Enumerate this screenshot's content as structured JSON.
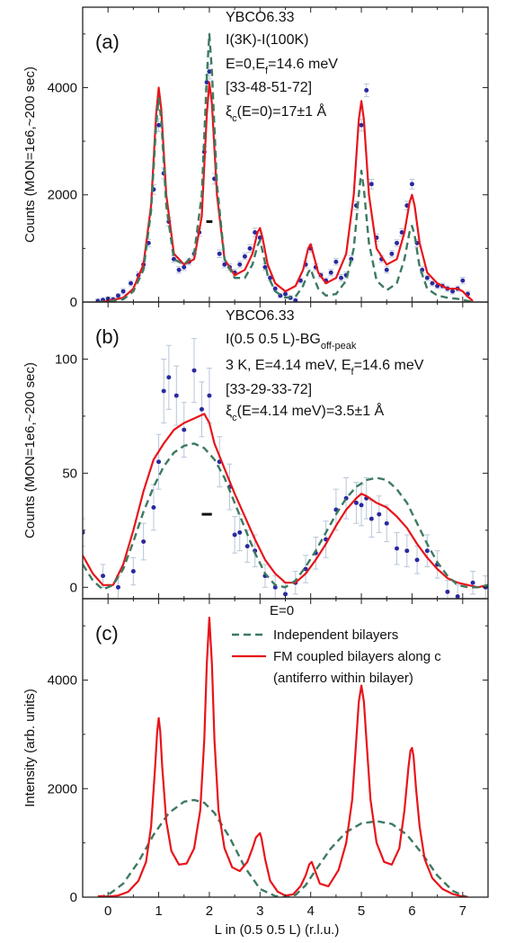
{
  "figure": {
    "xlabel": "L in (0.5 0.5 L) (r.l.u.)"
  },
  "colors": {
    "model_fm": "#e8141a",
    "model_independent": "#3d7a60",
    "data_marker": "#2a2aa0",
    "errorbar": "#b8c6d8"
  },
  "chart_data": [
    {
      "panel": "a",
      "type": "scatter",
      "panel_label": "(a)",
      "ylabel": "Counts (MON=1e6,~200 sec)",
      "xlim": [
        -0.5,
        7.5
      ],
      "ylim": [
        0,
        5500
      ],
      "yticks": [
        0,
        2000,
        4000
      ],
      "annotation": {
        "line1": "YBCO6.33",
        "line2": "I(3K)-I(100K)",
        "line3_main": "E=0,E",
        "line3_sub": "f",
        "line3_rest": "=14.6 meV",
        "line4": "[33-48-51-72]",
        "line5_sym": "ξ",
        "line5_sub": "c",
        "line5_rest": "(E=0)=17±1 Å"
      },
      "resolution_bar": {
        "x_center": 2.0,
        "width": 0.12,
        "y": 1500
      },
      "series": [
        {
          "name": "data",
          "style": "markers",
          "x": [
            -0.2,
            -0.1,
            0.0,
            0.1,
            0.2,
            0.3,
            0.45,
            0.6,
            0.7,
            0.8,
            0.9,
            1.0,
            1.1,
            1.2,
            1.3,
            1.4,
            1.5,
            1.6,
            1.7,
            1.8,
            1.9,
            1.95,
            2.0,
            2.1,
            2.2,
            2.3,
            2.4,
            2.5,
            2.6,
            2.7,
            2.8,
            2.9,
            3.0,
            3.1,
            3.2,
            3.3,
            3.4,
            3.5,
            3.6,
            3.7,
            3.8,
            3.9,
            4.0,
            4.1,
            4.2,
            4.3,
            4.4,
            4.5,
            4.6,
            4.7,
            4.8,
            4.9,
            5.0,
            5.1,
            5.2,
            5.3,
            5.4,
            5.5,
            5.6,
            5.7,
            5.8,
            5.9,
            6.0,
            6.1,
            6.2,
            6.3,
            6.4,
            6.5,
            6.6,
            6.7,
            6.8,
            6.9,
            7.0,
            7.1
          ],
          "y": [
            20,
            40,
            60,
            50,
            120,
            200,
            350,
            500,
            700,
            1100,
            2100,
            3300,
            2400,
            1500,
            800,
            600,
            650,
            750,
            900,
            1300,
            2800,
            4100,
            4300,
            2300,
            900,
            700,
            650,
            550,
            700,
            850,
            1000,
            1300,
            1200,
            650,
            450,
            250,
            120,
            150,
            80,
            30,
            400,
            700,
            1000,
            650,
            500,
            400,
            550,
            750,
            450,
            500,
            800,
            1800,
            3300,
            3950,
            2200,
            1200,
            800,
            600,
            900,
            1100,
            1300,
            1800,
            2200,
            1100,
            600,
            450,
            350,
            300,
            300,
            250,
            200,
            250,
            400,
            150
          ],
          "err": [
            40,
            40,
            40,
            40,
            40,
            50,
            50,
            60,
            60,
            70,
            90,
            120,
            100,
            80,
            60,
            60,
            60,
            60,
            60,
            70,
            100,
            130,
            140,
            100,
            70,
            60,
            60,
            60,
            60,
            60,
            70,
            80,
            90,
            60,
            50,
            40,
            40,
            40,
            40,
            40,
            50,
            60,
            70,
            60,
            50,
            50,
            60,
            60,
            60,
            60,
            60,
            80,
            110,
            120,
            90,
            70,
            60,
            60,
            60,
            60,
            70,
            80,
            90,
            70,
            60,
            50,
            50,
            50,
            50,
            50,
            50,
            50,
            60,
            50
          ]
        },
        {
          "name": "",
          "style": "line-solid",
          "color_key": "model_fm",
          "x": [
            -0.2,
            0.0,
            0.3,
            0.5,
            0.7,
            0.85,
            0.95,
            1.0,
            1.05,
            1.15,
            1.3,
            1.5,
            1.7,
            1.85,
            1.95,
            2.0,
            2.05,
            2.15,
            2.3,
            2.5,
            2.7,
            2.85,
            2.95,
            3.0,
            3.05,
            3.15,
            3.3,
            3.5,
            3.7,
            3.85,
            3.95,
            4.0,
            4.05,
            4.15,
            4.3,
            4.5,
            4.7,
            4.85,
            4.95,
            5.0,
            5.05,
            5.15,
            5.3,
            5.5,
            5.7,
            5.85,
            5.95,
            6.0,
            6.05,
            6.15,
            6.3,
            6.5,
            6.7,
            6.9,
            7.0,
            7.1,
            7.2
          ],
          "y": [
            0,
            20,
            80,
            250,
            700,
            1800,
            3500,
            4000,
            3600,
            2000,
            900,
            700,
            800,
            1600,
            3500,
            4100,
            3700,
            2000,
            800,
            500,
            600,
            900,
            1300,
            1380,
            1200,
            700,
            350,
            200,
            300,
            600,
            1000,
            1080,
            900,
            550,
            350,
            450,
            900,
            2000,
            3400,
            3750,
            3400,
            2000,
            1000,
            700,
            800,
            1300,
            1850,
            2000,
            1800,
            1100,
            550,
            350,
            250,
            250,
            200,
            100,
            20
          ]
        },
        {
          "name": "",
          "style": "line-dashed",
          "color_key": "model_independent",
          "x": [
            -0.2,
            0.0,
            0.3,
            0.5,
            0.7,
            0.85,
            0.95,
            1.0,
            1.05,
            1.15,
            1.3,
            1.5,
            1.7,
            1.85,
            1.95,
            2.0,
            2.05,
            2.15,
            2.3,
            2.5,
            2.7,
            2.85,
            2.95,
            3.0,
            3.05,
            3.15,
            3.3,
            3.5,
            3.7,
            3.85,
            3.95,
            4.0,
            4.05,
            4.15,
            4.3,
            4.5,
            4.7,
            4.85,
            4.95,
            5.0,
            5.05,
            5.15,
            5.3,
            5.5,
            5.7,
            5.85,
            5.95,
            6.0,
            6.05,
            6.15,
            6.3,
            6.5,
            6.7,
            6.9,
            7.0,
            7.1,
            7.2
          ],
          "y": [
            0,
            10,
            50,
            200,
            600,
            1700,
            3300,
            3800,
            3400,
            1800,
            800,
            700,
            900,
            2000,
            4200,
            5000,
            4300,
            2200,
            800,
            450,
            450,
            700,
            1050,
            1150,
            950,
            500,
            200,
            80,
            100,
            300,
            550,
            620,
            480,
            250,
            120,
            150,
            400,
            1000,
            2000,
            2450,
            2100,
            1100,
            400,
            220,
            350,
            800,
            1300,
            1420,
            1250,
            650,
            250,
            120,
            80,
            60,
            40,
            20,
            0
          ]
        }
      ]
    },
    {
      "panel": "b",
      "type": "scatter",
      "panel_label": "(b)",
      "ylabel": "Counts (MON=1e6,~200 sec)",
      "xlim": [
        -0.5,
        7.5
      ],
      "ylim": [
        -5,
        125
      ],
      "yticks": [
        0,
        50,
        100
      ],
      "annotation": {
        "line1": "YBCO6.33",
        "line2_main": "I(0.5 0.5 L)-BG",
        "line2_sub": "off-peak",
        "line3_main": "3 K, E=4.14 meV, E",
        "line3_sub": "f",
        "line3_rest": "=14.6 meV",
        "line4": "[33-29-33-72]",
        "line5_sym": "ξ",
        "line5_sub": "c",
        "line5_rest": "(E=4.14 meV)=3.5±1 Å"
      },
      "resolution_bar": {
        "x_center": 1.95,
        "width": 0.2,
        "y": 32
      },
      "series": [
        {
          "name": "data",
          "style": "markers",
          "x": [
            -0.5,
            -0.1,
            0.2,
            0.5,
            0.7,
            0.9,
            1.0,
            1.1,
            1.2,
            1.35,
            1.5,
            1.7,
            1.85,
            2.0,
            2.2,
            2.4,
            2.5,
            2.6,
            2.75,
            2.9,
            3.1,
            3.3,
            3.5,
            3.7,
            3.9,
            4.1,
            4.3,
            4.5,
            4.7,
            4.9,
            5.0,
            5.1,
            5.2,
            5.35,
            5.5,
            5.7,
            5.9,
            6.1,
            6.3,
            6.5,
            6.7,
            6.9,
            7.2,
            7.45
          ],
          "y": [
            24,
            5,
            0,
            7,
            20,
            35,
            55,
            86,
            92,
            84,
            69,
            95,
            78,
            84,
            55,
            44,
            23,
            24,
            18,
            16,
            5,
            0,
            -3,
            2,
            8,
            15,
            21,
            34,
            39,
            37,
            36,
            39,
            30,
            32,
            28,
            17,
            16,
            12,
            16,
            10,
            -2,
            -4,
            2,
            0
          ],
          "err": [
            6,
            5,
            5,
            6,
            8,
            10,
            12,
            14,
            14,
            13,
            12,
            14,
            12,
            12,
            11,
            10,
            8,
            8,
            7,
            7,
            5,
            5,
            5,
            5,
            6,
            7,
            8,
            9,
            9,
            9,
            9,
            9,
            8,
            8,
            8,
            7,
            7,
            6,
            7,
            6,
            5,
            5,
            5,
            5
          ]
        },
        {
          "name": "",
          "style": "line-solid",
          "color_key": "model_fm",
          "x": [
            -0.5,
            -0.3,
            -0.1,
            0.1,
            0.3,
            0.5,
            0.7,
            0.9,
            1.1,
            1.3,
            1.5,
            1.7,
            1.9,
            2.0,
            2.1,
            2.3,
            2.5,
            2.7,
            2.9,
            3.1,
            3.3,
            3.5,
            3.7,
            3.9,
            4.1,
            4.3,
            4.5,
            4.7,
            4.9,
            5.0,
            5.1,
            5.3,
            5.5,
            5.7,
            5.9,
            6.1,
            6.3,
            6.5,
            6.7,
            6.9,
            7.1,
            7.3,
            7.5
          ],
          "y": [
            14,
            6,
            1,
            1,
            10,
            25,
            42,
            56,
            63,
            69,
            72,
            74,
            76,
            72,
            63,
            52,
            41,
            31,
            21,
            12,
            6,
            2,
            2,
            6,
            12,
            19,
            27,
            34,
            39,
            41,
            40,
            37,
            35,
            31,
            26,
            19,
            13,
            8,
            4,
            2,
            1,
            0,
            1
          ]
        },
        {
          "name": "",
          "style": "line-dashed",
          "color_key": "model_independent",
          "x": [
            -0.5,
            -0.3,
            -0.1,
            0.1,
            0.3,
            0.5,
            0.7,
            0.9,
            1.1,
            1.3,
            1.5,
            1.7,
            1.9,
            2.1,
            2.3,
            2.5,
            2.7,
            2.9,
            3.1,
            3.3,
            3.5,
            3.7,
            3.9,
            4.1,
            4.3,
            4.5,
            4.7,
            4.9,
            5.1,
            5.3,
            5.5,
            5.7,
            5.9,
            6.1,
            6.3,
            6.5,
            6.7,
            6.9,
            7.1,
            7.3,
            7.5
          ],
          "y": [
            10,
            3,
            -1,
            1,
            8,
            20,
            33,
            44,
            53,
            59,
            62,
            63,
            61,
            56,
            48,
            37,
            26,
            15,
            6,
            1,
            0,
            3,
            9,
            16,
            24,
            32,
            39,
            44,
            47,
            48,
            47,
            43,
            37,
            28,
            19,
            11,
            5,
            1,
            0,
            0,
            1
          ]
        }
      ]
    },
    {
      "panel": "c",
      "type": "line",
      "panel_label": "(c)",
      "ylabel": "Intensity (arb. units)",
      "xlabel": "L in (0.5 0.5 L) (r.l.u.)",
      "xlim": [
        -0.5,
        7.5
      ],
      "ylim": [
        0,
        5500
      ],
      "xticks": [
        0,
        1,
        2,
        3,
        4,
        5,
        6,
        7
      ],
      "yticks": [
        0,
        2000,
        4000
      ],
      "legend": {
        "header": "E=0",
        "dashed_label": "Independent bilayers",
        "solid_label_1": "FM coupled bilayers along c",
        "solid_label_2": "(antiferro within bilayer)"
      },
      "series": [
        {
          "name": "Independent bilayers",
          "style": "line-dashed",
          "color_key": "model_independent",
          "x": [
            -0.2,
            0.0,
            0.3,
            0.6,
            0.9,
            1.2,
            1.5,
            1.7,
            1.9,
            2.1,
            2.4,
            2.7,
            3.0,
            3.3,
            3.5,
            3.7,
            3.9,
            4.1,
            4.4,
            4.7,
            5.0,
            5.3,
            5.6,
            5.9,
            6.2,
            6.5,
            6.8,
            7.0,
            7.1
          ],
          "y": [
            0,
            40,
            250,
            650,
            1150,
            1550,
            1760,
            1790,
            1740,
            1550,
            1100,
            550,
            150,
            20,
            0,
            40,
            220,
            500,
            900,
            1200,
            1360,
            1400,
            1350,
            1150,
            800,
            400,
            120,
            30,
            0
          ]
        },
        {
          "name": "FM coupled bilayers along c",
          "style": "line-solid",
          "color_key": "model_fm",
          "x": [
            -0.2,
            0.0,
            0.2,
            0.4,
            0.6,
            0.75,
            0.85,
            0.93,
            0.97,
            1.0,
            1.03,
            1.07,
            1.15,
            1.25,
            1.4,
            1.55,
            1.7,
            1.82,
            1.9,
            1.95,
            2.0,
            2.05,
            2.1,
            2.18,
            2.3,
            2.45,
            2.6,
            2.75,
            2.85,
            2.92,
            2.97,
            3.0,
            3.03,
            3.1,
            3.2,
            3.35,
            3.5,
            3.65,
            3.8,
            3.9,
            3.97,
            4.02,
            4.08,
            4.18,
            4.35,
            4.55,
            4.7,
            4.82,
            4.9,
            4.95,
            5.0,
            5.05,
            5.1,
            5.18,
            5.3,
            5.45,
            5.6,
            5.75,
            5.85,
            5.93,
            5.97,
            6.0,
            6.03,
            6.08,
            6.15,
            6.25,
            6.4,
            6.6,
            6.8,
            7.0,
            7.1
          ],
          "y": [
            20,
            10,
            30,
            100,
            300,
            650,
            1300,
            2400,
            3050,
            3300,
            3050,
            2400,
            1400,
            850,
            600,
            620,
            900,
            1600,
            2900,
            4300,
            5150,
            4300,
            2900,
            1600,
            900,
            550,
            480,
            650,
            900,
            1100,
            1150,
            1180,
            1080,
            700,
            300,
            100,
            30,
            50,
            200,
            400,
            600,
            650,
            500,
            250,
            200,
            500,
            1000,
            1800,
            2900,
            3600,
            3900,
            3600,
            2900,
            1800,
            1000,
            650,
            600,
            900,
            1600,
            2400,
            2700,
            2750,
            2600,
            2000,
            1300,
            700,
            350,
            150,
            60,
            10,
            0
          ]
        }
      ]
    }
  ]
}
